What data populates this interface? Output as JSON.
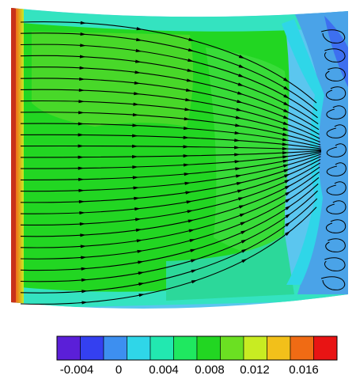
{
  "figure": {
    "description_colors": {
      "background": "#dff4fb",
      "dominant_field": "#22d622",
      "left_edge_hot": "#e8361a",
      "right_region_cold": "#4aa3e8",
      "streamline": "#000000"
    }
  },
  "colorbar": {
    "bins": [
      "#5b1fd8",
      "#3440f0",
      "#3d8ff0",
      "#2fd6e8",
      "#22e8b0",
      "#1fe860",
      "#22d622",
      "#6be022",
      "#c8ec22",
      "#f2c01a",
      "#f06b14",
      "#e81414"
    ],
    "tick_labels": [
      "-0.004",
      "0",
      "0.004",
      "0.008",
      "0.012",
      "0.016"
    ]
  }
}
